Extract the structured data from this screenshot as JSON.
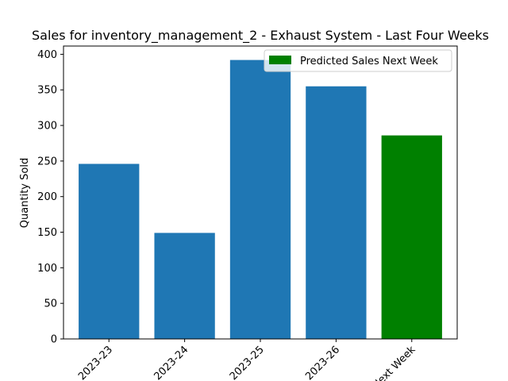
{
  "chart_data": {
    "type": "bar",
    "title": "Sales for inventory_management_2 - Exhaust System - Last Four Weeks",
    "xlabel": "",
    "ylabel": "Quantity Sold",
    "categories": [
      "2023-23",
      "2023-24",
      "2023-25",
      "2023-26",
      "Next Week"
    ],
    "values": [
      246,
      149,
      392,
      355,
      286
    ],
    "bar_colors": [
      "#1f77b4",
      "#1f77b4",
      "#1f77b4",
      "#1f77b4",
      "#008000"
    ],
    "ylim": [
      0,
      411.6
    ],
    "yticks": [
      0,
      50,
      100,
      150,
      200,
      250,
      300,
      350,
      400
    ],
    "grid": false,
    "legend": {
      "position": "top-right",
      "entries": [
        {
          "label": "Predicted Sales Next Week",
          "color": "#008000"
        }
      ]
    }
  }
}
